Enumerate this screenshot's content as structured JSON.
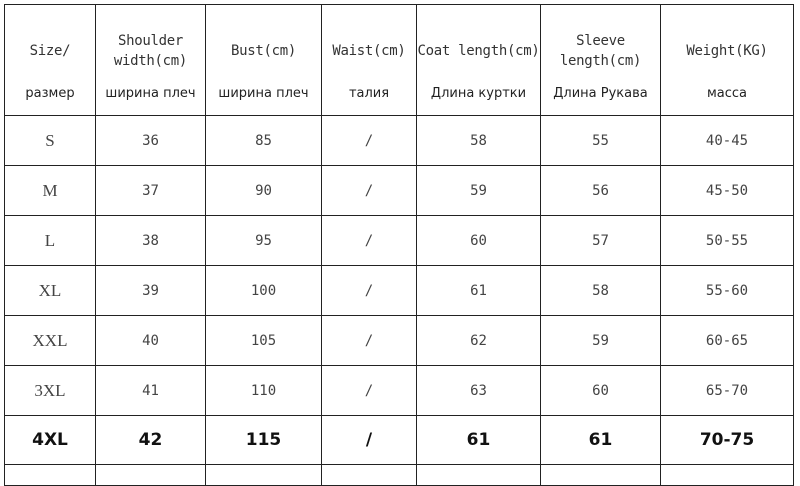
{
  "headers": [
    {
      "en": "Size/",
      "ru": "размер"
    },
    {
      "en": "Shoulder width(cm)",
      "ru": "ширина плеч"
    },
    {
      "en": "Bust(cm)",
      "ru": "ширина плеч"
    },
    {
      "en": "Waist(cm)",
      "ru": "талия"
    },
    {
      "en": "Coat length(cm)",
      "ru": "Длина куртки"
    },
    {
      "en": "Sleeve length(cm)",
      "ru": "Длина Рукава"
    },
    {
      "en": "Weight(KG)",
      "ru": "масса"
    }
  ],
  "rows": [
    [
      "S",
      "36",
      "85",
      "/",
      "58",
      "55",
      "40-45"
    ],
    [
      "M",
      "37",
      "90",
      "/",
      "59",
      "56",
      "45-50"
    ],
    [
      "L",
      "38",
      "95",
      "/",
      "60",
      "57",
      "50-55"
    ],
    [
      "XL",
      "39",
      "100",
      "/",
      "61",
      "58",
      "55-60"
    ],
    [
      "XXL",
      "40",
      "105",
      "/",
      "62",
      "59",
      "60-65"
    ],
    [
      "3XL",
      "41",
      "110",
      "/",
      "63",
      "60",
      "65-70"
    ],
    [
      "4XL",
      "42",
      "115",
      "/",
      "61",
      "61",
      "70-75"
    ]
  ]
}
